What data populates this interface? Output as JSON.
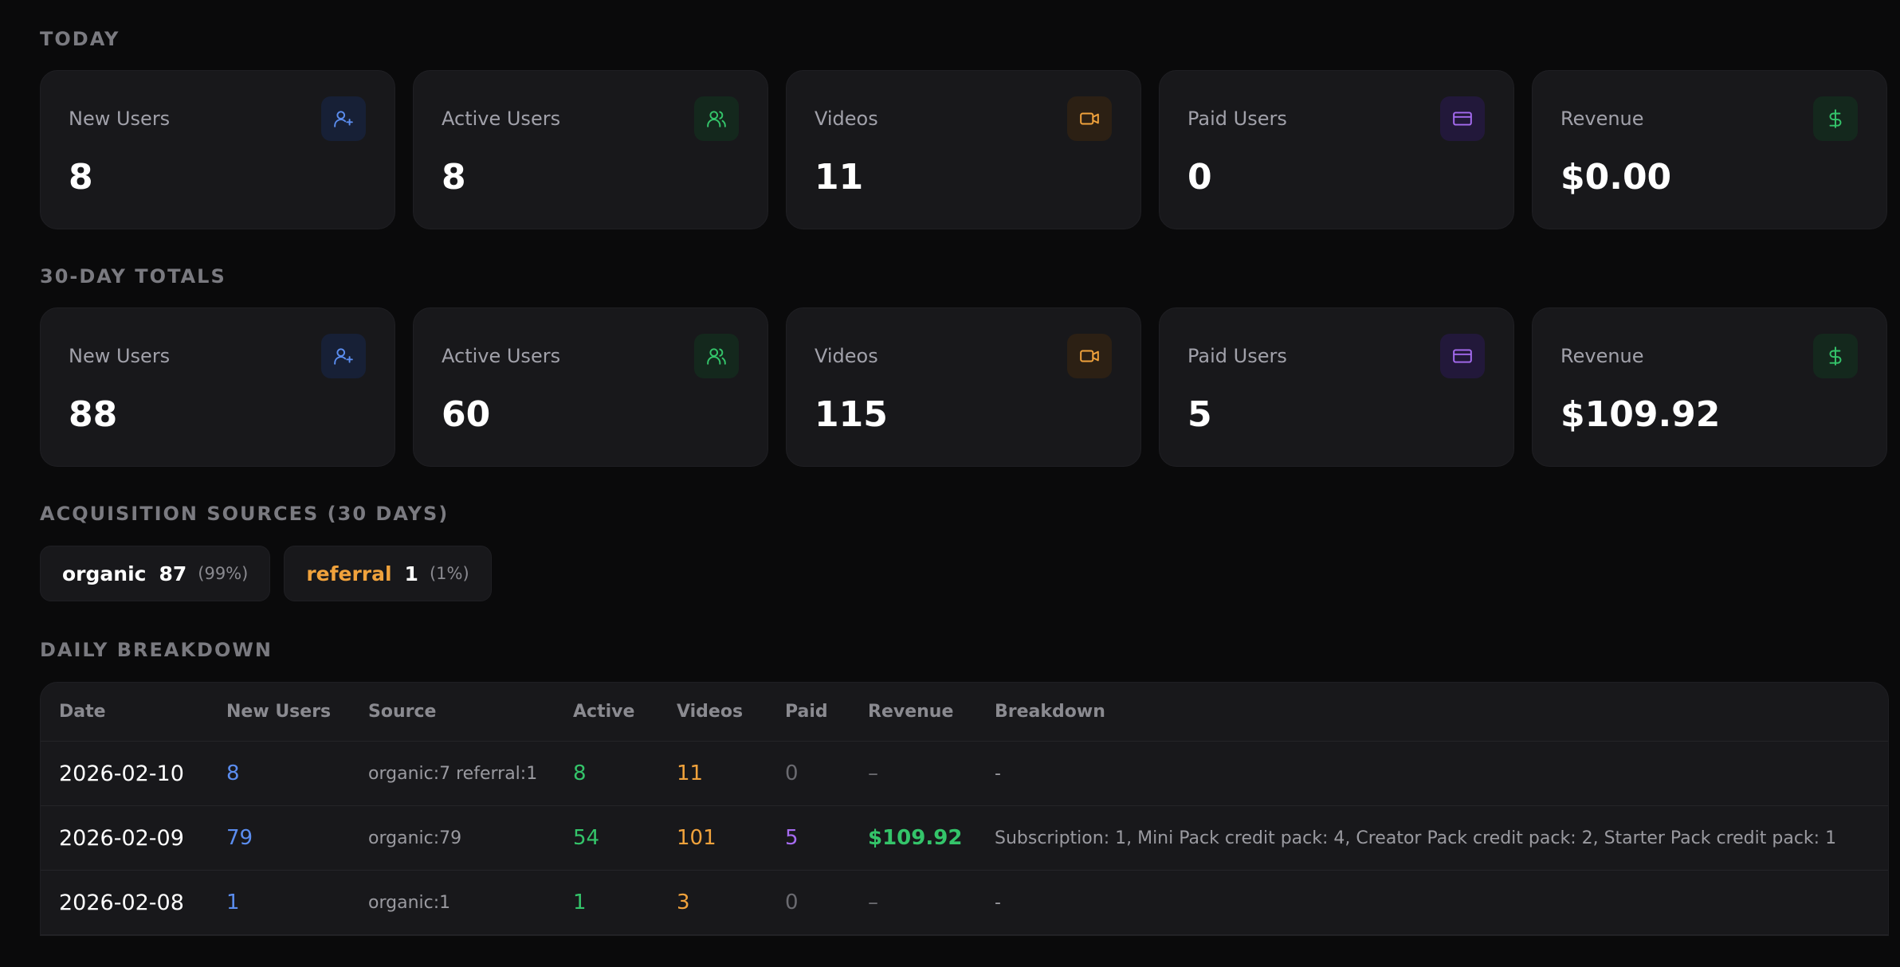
{
  "colors": {
    "background": "#0a0a0b",
    "card": "#18181b",
    "blue": "#5b8def",
    "green": "#34c46a",
    "orange": "#f0a23c",
    "purple": "#a56bf0",
    "muted": "#7a7a80"
  },
  "today": {
    "title": "TODAY",
    "cards": [
      {
        "label": "New Users",
        "value": "8",
        "icon": "user-plus-icon"
      },
      {
        "label": "Active Users",
        "value": "8",
        "icon": "users-icon"
      },
      {
        "label": "Videos",
        "value": "11",
        "icon": "video-icon"
      },
      {
        "label": "Paid Users",
        "value": "0",
        "icon": "credit-card-icon"
      },
      {
        "label": "Revenue",
        "value": "$0.00",
        "icon": "dollar-icon"
      }
    ]
  },
  "totals": {
    "title": "30-DAY TOTALS",
    "cards": [
      {
        "label": "New Users",
        "value": "88",
        "icon": "user-plus-icon"
      },
      {
        "label": "Active Users",
        "value": "60",
        "icon": "users-icon"
      },
      {
        "label": "Videos",
        "value": "115",
        "icon": "video-icon"
      },
      {
        "label": "Paid Users",
        "value": "5",
        "icon": "credit-card-icon"
      },
      {
        "label": "Revenue",
        "value": "$109.92",
        "icon": "dollar-icon"
      }
    ]
  },
  "acquisition": {
    "title": "ACQUISITION SOURCES (30 DAYS)",
    "sources": [
      {
        "name": "organic",
        "count": "87",
        "pct": "(99%)",
        "color": "#ffffff"
      },
      {
        "name": "referral",
        "count": "1",
        "pct": "(1%)",
        "color": "#f0a23c"
      }
    ]
  },
  "daily": {
    "title": "DAILY BREAKDOWN",
    "columns": [
      "Date",
      "New Users",
      "Source",
      "Active",
      "Videos",
      "Paid",
      "Revenue",
      "Breakdown"
    ],
    "rows": [
      {
        "date": "2026-02-10",
        "new_users": "8",
        "source": "organic:7 referral:1",
        "active": "8",
        "videos": "11",
        "paid": "0",
        "revenue": "–",
        "breakdown": "-"
      },
      {
        "date": "2026-02-09",
        "new_users": "79",
        "source": "organic:79",
        "active": "54",
        "videos": "101",
        "paid": "5",
        "revenue": "$109.92",
        "breakdown": "Subscription: 1, Mini Pack credit pack: 4, Creator Pack credit pack: 2, Starter Pack credit pack: 1"
      },
      {
        "date": "2026-02-08",
        "new_users": "1",
        "source": "organic:1",
        "active": "1",
        "videos": "3",
        "paid": "0",
        "revenue": "–",
        "breakdown": "-"
      }
    ]
  }
}
